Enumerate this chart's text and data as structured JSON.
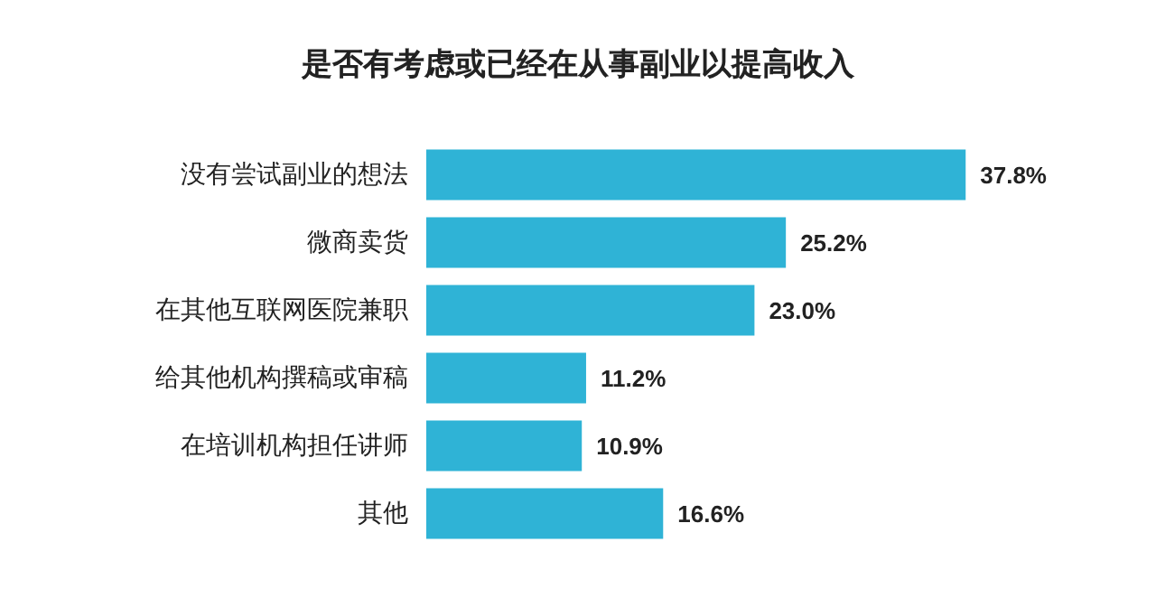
{
  "chart_data": {
    "type": "bar",
    "orientation": "horizontal",
    "title": "是否有考虑或已经在从事副业以提高收入",
    "categories": [
      "没有尝试副业的想法",
      "微商卖货",
      "在其他互联网医院兼职",
      "给其他机构撰稿或审稿",
      "在培训机构担任讲师",
      "其他"
    ],
    "values": [
      37.8,
      25.2,
      23.0,
      11.2,
      10.9,
      16.6
    ],
    "value_labels": [
      "37.8%",
      "25.2%",
      "23.0%",
      "11.2%",
      "10.9%",
      "16.6%"
    ],
    "color": "#2fb3d6"
  }
}
